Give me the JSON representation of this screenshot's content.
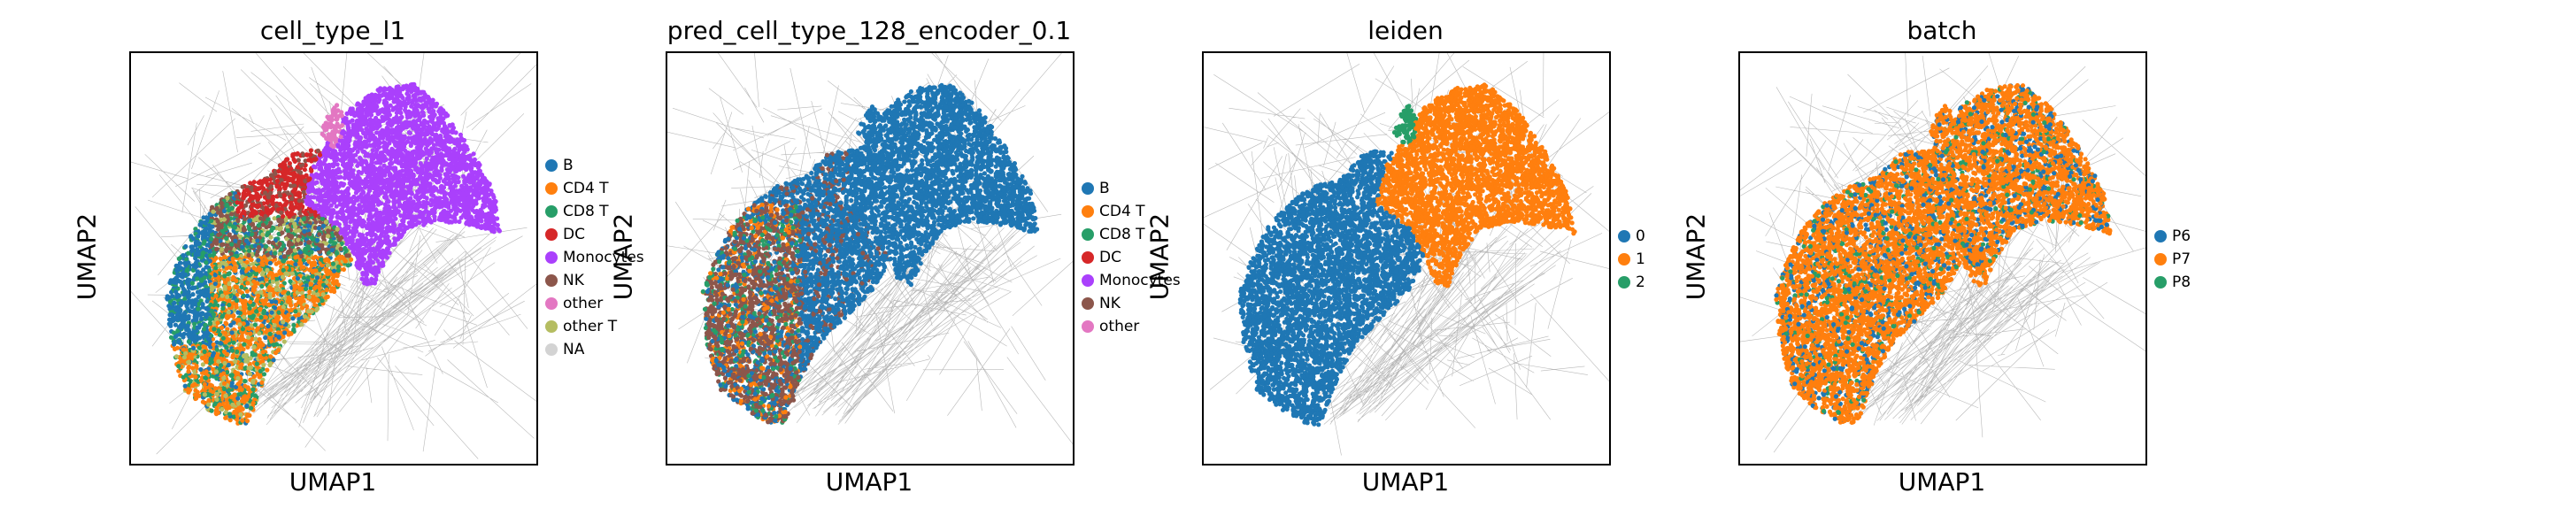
{
  "chart_data": [
    {
      "type": "scatter",
      "title": "cell_type_l1",
      "xlabel": "UMAP1",
      "ylabel": "UMAP2",
      "grid": false,
      "legend_position": "right",
      "categories": [
        {
          "name": "B",
          "color": "#1f77b4"
        },
        {
          "name": "CD4 T",
          "color": "#ff7f0e"
        },
        {
          "name": "CD8 T",
          "color": "#279e68"
        },
        {
          "name": "DC",
          "color": "#d62728"
        },
        {
          "name": "Monocytes",
          "color": "#aa40fc"
        },
        {
          "name": "NK",
          "color": "#8c564b"
        },
        {
          "name": "other",
          "color": "#e377c2"
        },
        {
          "name": "other T",
          "color": "#b5bd61"
        },
        {
          "name": "NA",
          "color": "#d3d3d3"
        }
      ],
      "regions": [
        {
          "category": "Monocytes",
          "area": "right-top lobe"
        },
        {
          "category": "other",
          "area": "top tip"
        },
        {
          "category": "DC",
          "area": "upper-middle"
        },
        {
          "category": "NK",
          "area": "middle"
        },
        {
          "category": "B",
          "area": "left edge"
        },
        {
          "category": "CD4 T",
          "area": "lower-left"
        },
        {
          "category": "CD8 T",
          "area": "lower-left"
        },
        {
          "category": "other T",
          "area": "lower-left"
        }
      ]
    },
    {
      "type": "scatter",
      "title": "pred_cell_type_128_encoder_0.1",
      "xlabel": "UMAP1",
      "ylabel": "UMAP2",
      "grid": false,
      "legend_position": "right",
      "categories": [
        {
          "name": "B",
          "color": "#1f77b4"
        },
        {
          "name": "CD4 T",
          "color": "#ff7f0e"
        },
        {
          "name": "CD8 T",
          "color": "#279e68"
        },
        {
          "name": "DC",
          "color": "#d62728"
        },
        {
          "name": "Monocytes",
          "color": "#aa40fc"
        },
        {
          "name": "NK",
          "color": "#8c564b"
        },
        {
          "name": "other",
          "color": "#e377c2"
        }
      ],
      "regions": [
        {
          "category": "B",
          "area": "most of embedding"
        },
        {
          "category": "NK",
          "area": "lower-left"
        },
        {
          "category": "CD8 T",
          "area": "lower-left"
        }
      ]
    },
    {
      "type": "scatter",
      "title": "leiden",
      "xlabel": "UMAP1",
      "ylabel": "UMAP2",
      "grid": false,
      "legend_position": "right",
      "categories": [
        {
          "name": "0",
          "color": "#1f77b4"
        },
        {
          "name": "1",
          "color": "#ff7f0e"
        },
        {
          "name": "2",
          "color": "#279e68"
        }
      ],
      "regions": [
        {
          "category": "0",
          "area": "left lobe"
        },
        {
          "category": "1",
          "area": "right-top lobe"
        },
        {
          "category": "2",
          "area": "top tip"
        }
      ]
    },
    {
      "type": "scatter",
      "title": "batch",
      "xlabel": "UMAP1",
      "ylabel": "UMAP2",
      "grid": false,
      "legend_position": "right",
      "categories": [
        {
          "name": "P6",
          "color": "#1f77b4"
        },
        {
          "name": "P7",
          "color": "#ff7f0e"
        },
        {
          "name": "P8",
          "color": "#279e68"
        }
      ],
      "regions": [
        {
          "category": "P7",
          "area": "most of embedding"
        },
        {
          "category": "P6",
          "area": "scattered middle"
        },
        {
          "category": "P8",
          "area": "scattered"
        }
      ]
    }
  ]
}
